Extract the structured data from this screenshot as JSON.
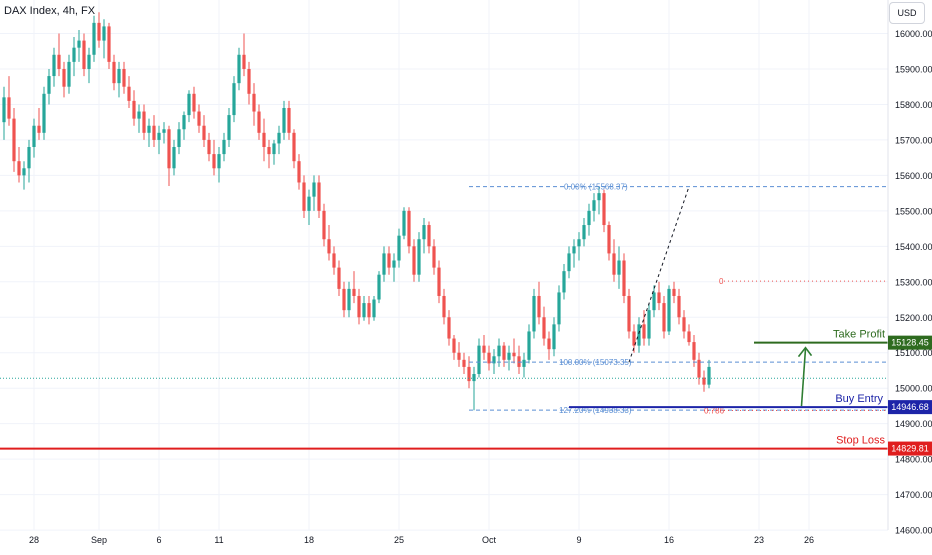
{
  "title": "DAX Index, 4h, FX",
  "currency_label": "USD",
  "chart_data": {
    "type": "candlestick",
    "ylim": [
      14600,
      16100
    ],
    "y_ticks": [
      "16000.00",
      "15900.00",
      "15800.00",
      "15700.00",
      "15600.00",
      "15500.00",
      "15400.00",
      "15300.00",
      "15200.00",
      "15100.00",
      "15000.00",
      "14900.00",
      "14800.00",
      "14700.00",
      "14600.00"
    ],
    "x_ticks": [
      {
        "label": "28",
        "i": 6
      },
      {
        "label": "Sep",
        "i": 19
      },
      {
        "label": "6",
        "i": 31
      },
      {
        "label": "11",
        "i": 43
      },
      {
        "label": "18",
        "i": 61
      },
      {
        "label": "25",
        "i": 79
      },
      {
        "label": "Oct",
        "i": 97
      },
      {
        "label": "9",
        "i": 115
      },
      {
        "label": "16",
        "i": 133
      },
      {
        "label": "23",
        "i": 151
      },
      {
        "label": "26",
        "i": 161
      }
    ],
    "candles": [
      [
        15750,
        15850,
        15700,
        15820
      ],
      [
        15820,
        15880,
        15740,
        15760
      ],
      [
        15760,
        15790,
        15610,
        15640
      ],
      [
        15640,
        15680,
        15580,
        15600
      ],
      [
        15600,
        15640,
        15560,
        15620
      ],
      [
        15620,
        15700,
        15580,
        15680
      ],
      [
        15680,
        15760,
        15650,
        15740
      ],
      [
        15740,
        15790,
        15700,
        15720
      ],
      [
        15720,
        15850,
        15700,
        15830
      ],
      [
        15830,
        15900,
        15800,
        15880
      ],
      [
        15880,
        15960,
        15850,
        15940
      ],
      [
        15940,
        16000,
        15880,
        15900
      ],
      [
        15900,
        15920,
        15820,
        15850
      ],
      [
        15850,
        15940,
        15830,
        15920
      ],
      [
        15920,
        15990,
        15880,
        15960
      ],
      [
        15960,
        16010,
        15920,
        15980
      ],
      [
        15980,
        16000,
        15880,
        15900
      ],
      [
        15900,
        15960,
        15860,
        15940
      ],
      [
        15940,
        16050,
        15920,
        16030
      ],
      [
        16030,
        16060,
        15960,
        15980
      ],
      [
        15980,
        16040,
        15930,
        16020
      ],
      [
        16020,
        16030,
        15900,
        15920
      ],
      [
        15920,
        15940,
        15840,
        15860
      ],
      [
        15860,
        15920,
        15820,
        15900
      ],
      [
        15900,
        15920,
        15830,
        15850
      ],
      [
        15850,
        15880,
        15790,
        15810
      ],
      [
        15810,
        15840,
        15740,
        15760
      ],
      [
        15760,
        15800,
        15720,
        15780
      ],
      [
        15780,
        15800,
        15700,
        15720
      ],
      [
        15720,
        15760,
        15680,
        15740
      ],
      [
        15740,
        15770,
        15680,
        15700
      ],
      [
        15700,
        15740,
        15660,
        15720
      ],
      [
        15720,
        15750,
        15690,
        15730
      ],
      [
        15730,
        15740,
        15570,
        15620
      ],
      [
        15620,
        15700,
        15600,
        15680
      ],
      [
        15680,
        15750,
        15660,
        15730
      ],
      [
        15730,
        15780,
        15700,
        15770
      ],
      [
        15770,
        15840,
        15750,
        15830
      ],
      [
        15830,
        15850,
        15760,
        15780
      ],
      [
        15780,
        15800,
        15720,
        15740
      ],
      [
        15740,
        15770,
        15680,
        15700
      ],
      [
        15700,
        15720,
        15640,
        15660
      ],
      [
        15660,
        15700,
        15600,
        15620
      ],
      [
        15620,
        15680,
        15580,
        15660
      ],
      [
        15660,
        15720,
        15640,
        15700
      ],
      [
        15700,
        15790,
        15680,
        15770
      ],
      [
        15770,
        15880,
        15750,
        15860
      ],
      [
        15860,
        15960,
        15840,
        15940
      ],
      [
        15940,
        16000,
        15880,
        15900
      ],
      [
        15900,
        15920,
        15800,
        15830
      ],
      [
        15830,
        15860,
        15740,
        15780
      ],
      [
        15780,
        15800,
        15700,
        15720
      ],
      [
        15720,
        15760,
        15640,
        15680
      ],
      [
        15680,
        15700,
        15620,
        15660
      ],
      [
        15660,
        15700,
        15630,
        15690
      ],
      [
        15690,
        15740,
        15660,
        15720
      ],
      [
        15720,
        15810,
        15700,
        15790
      ],
      [
        15790,
        15810,
        15700,
        15720
      ],
      [
        15720,
        15730,
        15620,
        15640
      ],
      [
        15640,
        15660,
        15560,
        15580
      ],
      [
        15580,
        15600,
        15480,
        15500
      ],
      [
        15500,
        15560,
        15460,
        15540
      ],
      [
        15540,
        15600,
        15500,
        15580
      ],
      [
        15580,
        15600,
        15480,
        15500
      ],
      [
        15500,
        15520,
        15400,
        15420
      ],
      [
        15420,
        15460,
        15360,
        15380
      ],
      [
        15380,
        15400,
        15320,
        15340
      ],
      [
        15340,
        15360,
        15260,
        15280
      ],
      [
        15280,
        15300,
        15200,
        15220
      ],
      [
        15220,
        15300,
        15200,
        15280
      ],
      [
        15280,
        15330,
        15240,
        15260
      ],
      [
        15260,
        15280,
        15180,
        15200
      ],
      [
        15200,
        15260,
        15190,
        15240
      ],
      [
        15240,
        15260,
        15180,
        15200
      ],
      [
        15200,
        15260,
        15190,
        15250
      ],
      [
        15250,
        15330,
        15240,
        15320
      ],
      [
        15320,
        15400,
        15300,
        15380
      ],
      [
        15380,
        15400,
        15320,
        15340
      ],
      [
        15340,
        15380,
        15300,
        15360
      ],
      [
        15360,
        15450,
        15340,
        15430
      ],
      [
        15430,
        15510,
        15420,
        15500
      ],
      [
        15500,
        15510,
        15380,
        15400
      ],
      [
        15400,
        15420,
        15300,
        15320
      ],
      [
        15320,
        15440,
        15300,
        15420
      ],
      [
        15420,
        15480,
        15380,
        15460
      ],
      [
        15460,
        15470,
        15380,
        15400
      ],
      [
        15400,
        15420,
        15320,
        15340
      ],
      [
        15340,
        15360,
        15240,
        15260
      ],
      [
        15260,
        15280,
        15180,
        15200
      ],
      [
        15200,
        15220,
        15120,
        15140
      ],
      [
        15140,
        15150,
        15080,
        15100
      ],
      [
        15100,
        15130,
        15060,
        15080
      ],
      [
        15080,
        15100,
        15040,
        15060
      ],
      [
        15060,
        15090,
        15000,
        15020
      ],
      [
        15020,
        15060,
        14938,
        15040
      ],
      [
        15040,
        15140,
        15030,
        15120
      ],
      [
        15120,
        15150,
        15080,
        15100
      ],
      [
        15100,
        15120,
        15050,
        15070
      ],
      [
        15070,
        15110,
        15040,
        15090
      ],
      [
        15090,
        15140,
        15060,
        15120
      ],
      [
        15120,
        15130,
        15060,
        15080
      ],
      [
        15080,
        15120,
        15050,
        15100
      ],
      [
        15100,
        15140,
        15070,
        15090
      ],
      [
        15090,
        15120,
        15040,
        15060
      ],
      [
        15060,
        15100,
        15030,
        15080
      ],
      [
        15080,
        15180,
        15070,
        15160
      ],
      [
        15160,
        15280,
        15140,
        15260
      ],
      [
        15260,
        15300,
        15180,
        15200
      ],
      [
        15200,
        15230,
        15120,
        15140
      ],
      [
        15140,
        15160,
        15080,
        15110
      ],
      [
        15110,
        15200,
        15090,
        15180
      ],
      [
        15180,
        15290,
        15160,
        15270
      ],
      [
        15270,
        15350,
        15250,
        15330
      ],
      [
        15330,
        15400,
        15310,
        15380
      ],
      [
        15380,
        15420,
        15340,
        15400
      ],
      [
        15400,
        15440,
        15360,
        15420
      ],
      [
        15420,
        15480,
        15400,
        15460
      ],
      [
        15460,
        15520,
        15430,
        15500
      ],
      [
        15500,
        15550,
        15470,
        15530
      ],
      [
        15530,
        15569,
        15490,
        15550
      ],
      [
        15550,
        15560,
        15440,
        15460
      ],
      [
        15460,
        15470,
        15360,
        15380
      ],
      [
        15380,
        15420,
        15300,
        15320
      ],
      [
        15320,
        15400,
        15280,
        15360
      ],
      [
        15360,
        15380,
        15240,
        15260
      ],
      [
        15260,
        15280,
        15140,
        15160
      ],
      [
        15160,
        15180,
        15100,
        15120
      ],
      [
        15120,
        15200,
        15100,
        15180
      ],
      [
        15180,
        15220,
        15120,
        15140
      ],
      [
        15140,
        15240,
        15120,
        15220
      ],
      [
        15220,
        15290,
        15200,
        15270
      ],
      [
        15270,
        15300,
        15220,
        15240
      ],
      [
        15240,
        15260,
        15140,
        15160
      ],
      [
        15160,
        15290,
        15150,
        15280
      ],
      [
        15280,
        15300,
        15240,
        15260
      ],
      [
        15260,
        15280,
        15180,
        15200
      ],
      [
        15200,
        15220,
        15140,
        15160
      ],
      [
        15160,
        15180,
        15120,
        15130
      ],
      [
        15130,
        15150,
        15060,
        15080
      ],
      [
        15080,
        15100,
        15010,
        15030
      ],
      [
        15030,
        15050,
        14990,
        15010
      ],
      [
        15010,
        15080,
        15000,
        15060
      ]
    ],
    "current_price": 15028,
    "levels": {
      "take_profit": {
        "label": "Take Profit",
        "value": 15128.45,
        "price_text": "15128.45",
        "color": "#2e6b1f"
      },
      "buy_entry": {
        "label": "Buy Entry",
        "value": 14946.68,
        "price_text": "14946.68",
        "color": "#1d24a8"
      },
      "stop_loss": {
        "label": "Stop Loss",
        "value": 14829.81,
        "price_text": "14829.81",
        "color": "#e01e1e"
      }
    },
    "fib_a": {
      "label_top": "0.00% (15568.37)",
      "label_mid": "100.00% (15073.35)",
      "label_ext": "127.20% (14938.33)",
      "top": 15568.37,
      "mid": 15073.35,
      "ext": 14938.33
    },
    "fib_b": {
      "label_top": "0",
      "label_ext": "0.786",
      "top": 15302,
      "ext": 14937
    },
    "colors": {
      "up": "#26a69a",
      "down": "#ef5350",
      "fib": "#5b8fd4"
    }
  }
}
